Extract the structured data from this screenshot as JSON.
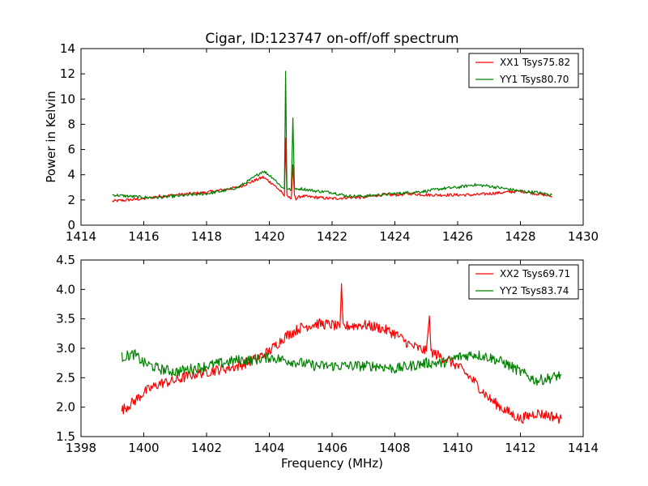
{
  "figure": {
    "title": "Cigar, ID:123747 on-off/off spectrum"
  },
  "chart_data": [
    {
      "type": "line",
      "title": "Cigar, ID:123747 on-off/off spectrum",
      "xlabel": "",
      "ylabel": "Power in Kelvin",
      "xlim": [
        1414,
        1430
      ],
      "ylim": [
        0,
        14
      ],
      "xticks": [
        "1414",
        "1416",
        "1418",
        "1420",
        "1422",
        "1424",
        "1426",
        "1428",
        "1430"
      ],
      "yticks": [
        "0",
        "2",
        "4",
        "6",
        "8",
        "10",
        "12",
        "14"
      ],
      "legend_position": "top-right",
      "series": [
        {
          "name": "XX1 Tsys75.82",
          "color": "#ff0000",
          "x": [
            1415.0,
            1415.5,
            1416.0,
            1416.5,
            1417.0,
            1417.5,
            1418.0,
            1418.5,
            1419.0,
            1419.4,
            1419.8,
            1420.1,
            1420.4,
            1420.48,
            1420.52,
            1420.56,
            1420.7,
            1420.75,
            1420.8,
            1420.85,
            1421.0,
            1421.5,
            1422.0,
            1422.5,
            1423.0,
            1423.5,
            1424.0,
            1424.5,
            1425.0,
            1425.5,
            1426.0,
            1426.5,
            1427.0,
            1427.5,
            1428.0,
            1428.5,
            1429.0
          ],
          "y": [
            1.9,
            2.0,
            2.1,
            2.3,
            2.4,
            2.5,
            2.6,
            2.8,
            3.0,
            3.4,
            3.8,
            3.3,
            2.6,
            2.3,
            6.9,
            2.3,
            2.1,
            4.8,
            2.4,
            2.1,
            2.3,
            2.2,
            2.1,
            2.2,
            2.2,
            2.4,
            2.4,
            2.5,
            2.4,
            2.4,
            2.4,
            2.4,
            2.5,
            2.6,
            2.7,
            2.5,
            2.3
          ]
        },
        {
          "name": "YY1 Tsys80.70",
          "color": "#008000",
          "x": [
            1415.0,
            1415.5,
            1416.0,
            1416.5,
            1417.0,
            1417.5,
            1418.0,
            1418.5,
            1419.0,
            1419.4,
            1419.8,
            1420.1,
            1420.4,
            1420.48,
            1420.52,
            1420.56,
            1420.7,
            1420.75,
            1420.8,
            1420.85,
            1421.0,
            1421.5,
            1422.0,
            1422.5,
            1423.0,
            1423.5,
            1424.0,
            1424.5,
            1425.0,
            1425.5,
            1426.0,
            1426.5,
            1427.0,
            1427.5,
            1428.0,
            1428.5,
            1429.0
          ],
          "y": [
            2.4,
            2.3,
            2.2,
            2.2,
            2.3,
            2.4,
            2.5,
            2.7,
            3.0,
            3.6,
            4.3,
            3.8,
            3.0,
            2.9,
            12.2,
            2.9,
            2.8,
            8.5,
            3.0,
            2.8,
            2.9,
            2.7,
            2.6,
            2.3,
            2.3,
            2.4,
            2.5,
            2.6,
            2.7,
            2.9,
            3.0,
            3.2,
            3.1,
            2.9,
            2.7,
            2.6,
            2.4
          ]
        }
      ]
    },
    {
      "type": "line",
      "title": "",
      "xlabel": "Frequency (MHz)",
      "ylabel": "",
      "xlim": [
        1398,
        1414
      ],
      "ylim": [
        1.5,
        4.5
      ],
      "xticks": [
        "1398",
        "1400",
        "1402",
        "1404",
        "1406",
        "1408",
        "1410",
        "1412",
        "1414"
      ],
      "yticks": [
        "1.5",
        "2.0",
        "2.5",
        "3.0",
        "3.5",
        "4.0",
        "4.5"
      ],
      "legend_position": "top-right",
      "series": [
        {
          "name": "XX2 Tsys69.71",
          "color": "#ff0000",
          "x": [
            1399.3,
            1399.7,
            1400.0,
            1400.5,
            1401.0,
            1401.5,
            1402.0,
            1402.5,
            1403.0,
            1403.5,
            1404.0,
            1404.5,
            1405.0,
            1405.5,
            1406.0,
            1406.25,
            1406.3,
            1406.35,
            1406.5,
            1407.0,
            1407.5,
            1408.0,
            1408.5,
            1409.0,
            1409.1,
            1409.15,
            1409.3,
            1409.5,
            1410.0,
            1410.5,
            1411.0,
            1411.5,
            1412.0,
            1412.5,
            1413.0,
            1413.3
          ],
          "y": [
            1.95,
            2.1,
            2.25,
            2.4,
            2.45,
            2.55,
            2.6,
            2.65,
            2.7,
            2.8,
            2.95,
            3.2,
            3.35,
            3.42,
            3.4,
            3.35,
            4.1,
            3.35,
            3.38,
            3.4,
            3.35,
            3.25,
            3.05,
            2.95,
            3.55,
            2.95,
            2.9,
            2.85,
            2.7,
            2.45,
            2.15,
            1.95,
            1.8,
            1.9,
            1.85,
            1.8
          ]
        },
        {
          "name": "YY2 Tsys83.74",
          "color": "#008000",
          "x": [
            1399.3,
            1399.7,
            1400.0,
            1400.5,
            1401.0,
            1401.5,
            1402.0,
            1402.5,
            1403.0,
            1403.5,
            1404.0,
            1404.5,
            1405.0,
            1405.5,
            1406.0,
            1406.5,
            1407.0,
            1407.5,
            1408.0,
            1408.5,
            1409.0,
            1409.5,
            1410.0,
            1410.5,
            1411.0,
            1411.5,
            1412.0,
            1412.5,
            1413.0,
            1413.3
          ],
          "y": [
            2.85,
            2.9,
            2.75,
            2.65,
            2.6,
            2.65,
            2.7,
            2.75,
            2.8,
            2.8,
            2.85,
            2.8,
            2.75,
            2.7,
            2.7,
            2.7,
            2.7,
            2.7,
            2.65,
            2.7,
            2.75,
            2.75,
            2.85,
            2.9,
            2.85,
            2.75,
            2.6,
            2.45,
            2.5,
            2.55
          ]
        }
      ]
    }
  ]
}
